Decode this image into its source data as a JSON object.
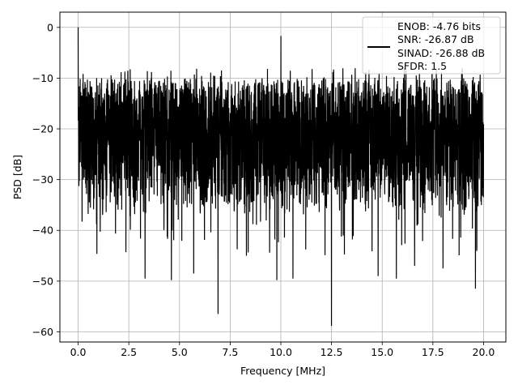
{
  "chart_data": {
    "type": "line",
    "xlabel": "Frequency [MHz]",
    "ylabel": "PSD [dB]",
    "xlim": [
      -0.9,
      21.1
    ],
    "ylim": [
      -62,
      3
    ],
    "xticks": [
      0.0,
      2.5,
      5.0,
      7.5,
      10.0,
      12.5,
      15.0,
      17.5,
      20.0
    ],
    "xtick_labels": [
      "0.0",
      "2.5",
      "5.0",
      "7.5",
      "10.0",
      "12.5",
      "15.0",
      "17.5",
      "20.0"
    ],
    "yticks": [
      0,
      -10,
      -20,
      -30,
      -40,
      -50,
      -60
    ],
    "ytick_labels": [
      "0",
      "−10",
      "−20",
      "−30",
      "−40",
      "−50",
      "−60"
    ],
    "grid": true,
    "legend_placement": "upper-right",
    "series": [
      {
        "color": "#000000",
        "x_range": [
          0.0,
          20.0
        ],
        "noise_floor_top": -11,
        "noise_floor_bottom": -36,
        "peaks": [
          {
            "x": 0.0,
            "y": 0.0
          },
          {
            "x": 10.0,
            "y": -1.7
          }
        ],
        "dips": [
          {
            "x": 3.3,
            "y": -49.5
          },
          {
            "x": 4.6,
            "y": -49.8
          },
          {
            "x": 5.7,
            "y": -48.5
          },
          {
            "x": 6.9,
            "y": -56.5
          },
          {
            "x": 8.3,
            "y": -45.0
          },
          {
            "x": 9.8,
            "y": -49.8
          },
          {
            "x": 10.6,
            "y": -49.5
          },
          {
            "x": 12.5,
            "y": -58.8
          },
          {
            "x": 14.8,
            "y": -49.0
          },
          {
            "x": 15.7,
            "y": -49.5
          },
          {
            "x": 16.6,
            "y": -47.0
          },
          {
            "x": 18.0,
            "y": -47.5
          },
          {
            "x": 19.6,
            "y": -51.5
          }
        ]
      }
    ],
    "legend": {
      "lines": [
        "ENOB: -4.76 bits",
        "SNR: -26.87 dB",
        "SINAD: -26.88 dB",
        "SFDR: 1.5"
      ]
    }
  }
}
